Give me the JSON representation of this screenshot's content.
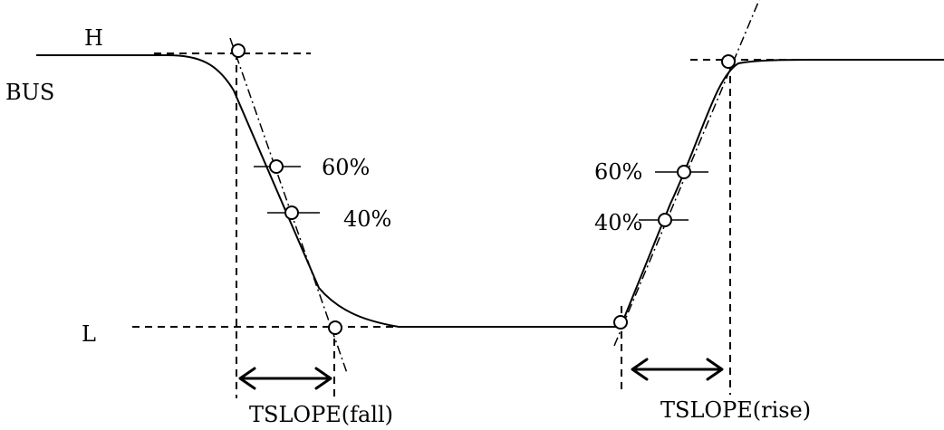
{
  "labels": {
    "high": "H",
    "low": "L",
    "signal": "BUS",
    "fall_60": "60%",
    "fall_40": "40%",
    "rise_60": "60%",
    "rise_40": "40%",
    "tslope_fall": "TSLOPE(fall)",
    "tslope_rise": "TSLOPE(rise)"
  },
  "colors": {
    "stroke": "#000000",
    "background": "#ffffff"
  }
}
